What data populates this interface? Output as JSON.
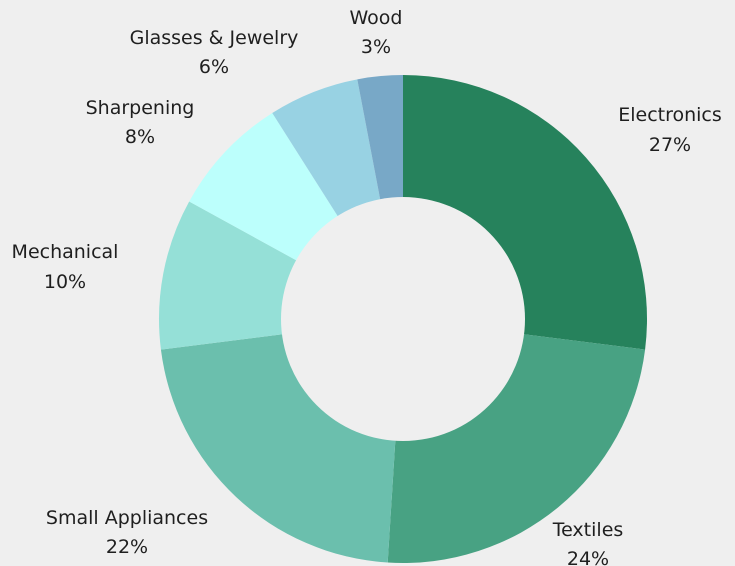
{
  "chart_data": {
    "type": "pie",
    "variant": "donut",
    "title": "",
    "slices": [
      {
        "label": "Electronics",
        "value": 27,
        "value_label": "27%",
        "color": "#26825c"
      },
      {
        "label": "Textiles",
        "value": 24,
        "value_label": "24%",
        "color": "#48a283"
      },
      {
        "label": "Small Appliances",
        "value": 22,
        "value_label": "22%",
        "color": "#6bbfad"
      },
      {
        "label": "Mechanical",
        "value": 10,
        "value_label": "10%",
        "color": "#95e0d7"
      },
      {
        "label": "Sharpening",
        "value": 8,
        "value_label": "8%",
        "color": "#bcfffc"
      },
      {
        "label": "Glasses & Jewelry",
        "value": 6,
        "value_label": "6%",
        "color": "#98d2e3"
      },
      {
        "label": "Wood",
        "value": 3,
        "value_label": "3%",
        "color": "#78a8c7"
      }
    ],
    "start_angle": "12 o'clock",
    "direction": "clockwise",
    "background": "#efefef"
  }
}
